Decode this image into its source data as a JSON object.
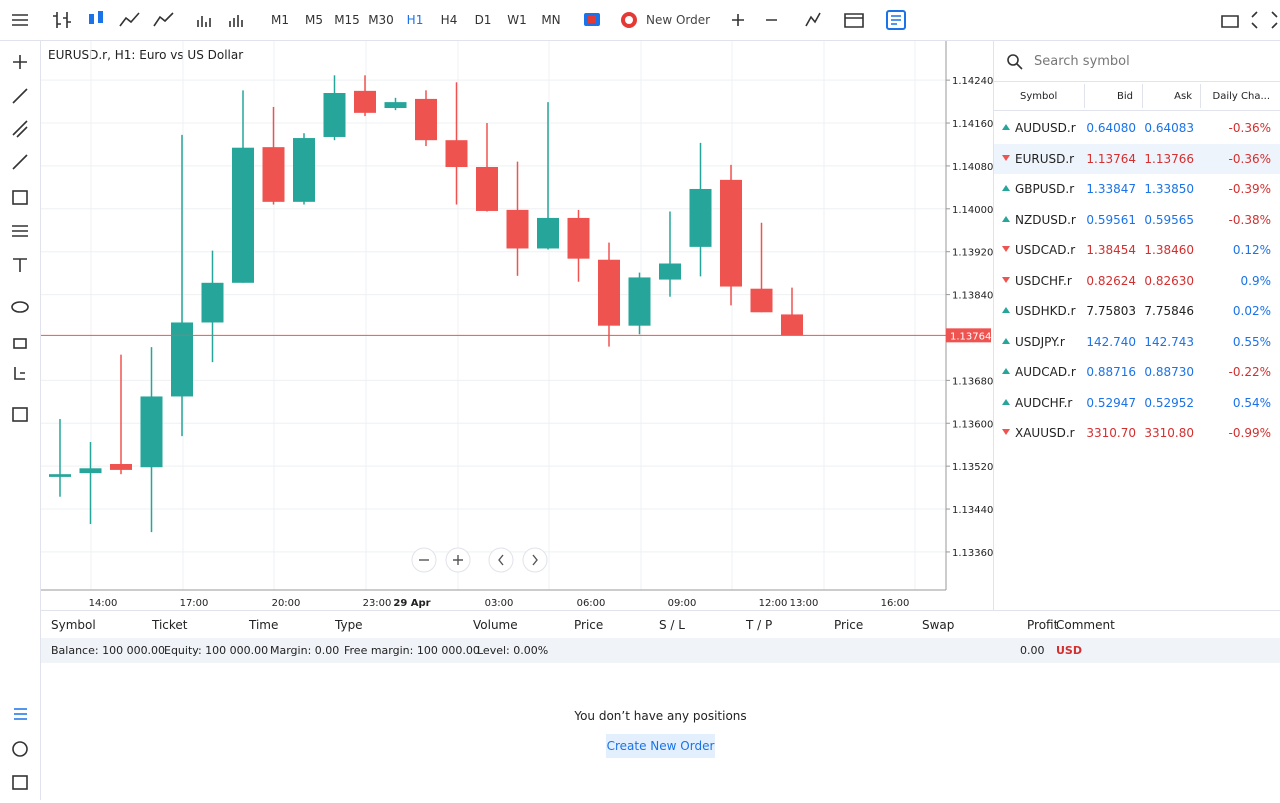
{
  "toolbar": {
    "timeframes": [
      "M1",
      "M5",
      "M15",
      "M30",
      "H1",
      "H4",
      "D1",
      "W1",
      "MN"
    ],
    "active_timeframe": "H1",
    "new_order": "New Order"
  },
  "chart": {
    "type": "candlestick",
    "title": "EURUSD.r, H1: Euro vs US Dollar",
    "up_color": "#26a69a",
    "down_color": "#ef5350",
    "ylim": [
      1.13289,
      1.14313
    ],
    "yticks": [
      {
        "value": 1.1424,
        "label": "1.14240"
      },
      {
        "value": 1.1416,
        "label": "1.14160"
      },
      {
        "value": 1.1408,
        "label": "1.14080"
      },
      {
        "value": 1.14,
        "label": "1.14000"
      },
      {
        "value": 1.1392,
        "label": "1.13920"
      },
      {
        "value": 1.1384,
        "label": "1.13840"
      },
      {
        "value": 1.1368,
        "label": "1.13680"
      },
      {
        "value": 1.136,
        "label": "1.13600"
      },
      {
        "value": 1.1352,
        "label": "1.13520"
      },
      {
        "value": 1.1344,
        "label": "1.13440"
      },
      {
        "value": 1.1336,
        "label": "1.13360"
      }
    ],
    "current_price": 1.13764,
    "xlabels": [
      "14:00",
      "17:00",
      "20:00",
      "23:00",
      "29 Apr",
      "03:00",
      "06:00",
      "09:00",
      "12:00",
      "13:00",
      "16:00"
    ],
    "candles": [
      {
        "open": 1.135,
        "high": 1.13608,
        "low": 1.13463,
        "close": 1.13505
      },
      {
        "open": 1.13507,
        "high": 1.13565,
        "low": 1.13412,
        "close": 1.13516
      },
      {
        "open": 1.13524,
        "high": 1.13728,
        "low": 1.13505,
        "close": 1.13513
      },
      {
        "open": 1.13518,
        "high": 1.13742,
        "low": 1.13397,
        "close": 1.1365
      },
      {
        "open": 1.1365,
        "high": 1.14138,
        "low": 1.13576,
        "close": 1.13788
      },
      {
        "open": 1.13788,
        "high": 1.13922,
        "low": 1.13714,
        "close": 1.13862
      },
      {
        "open": 1.13862,
        "high": 1.14221,
        "low": 1.13862,
        "close": 1.14114
      },
      {
        "open": 1.14115,
        "high": 1.1419,
        "low": 1.14008,
        "close": 1.14013
      },
      {
        "open": 1.14013,
        "high": 1.14141,
        "low": 1.14008,
        "close": 1.14132
      },
      {
        "open": 1.14134,
        "high": 1.14249,
        "low": 1.14128,
        "close": 1.14216
      },
      {
        "open": 1.1422,
        "high": 1.14249,
        "low": 1.14173,
        "close": 1.14179
      },
      {
        "open": 1.14188,
        "high": 1.14207,
        "low": 1.14184,
        "close": 1.14199
      },
      {
        "open": 1.14205,
        "high": 1.14221,
        "low": 1.14117,
        "close": 1.14128
      },
      {
        "open": 1.14128,
        "high": 1.14236,
        "low": 1.14008,
        "close": 1.14078
      },
      {
        "open": 1.14078,
        "high": 1.1416,
        "low": 1.13995,
        "close": 1.13996
      },
      {
        "open": 1.13998,
        "high": 1.14088,
        "low": 1.13875,
        "close": 1.13926
      },
      {
        "open": 1.13926,
        "high": 1.14199,
        "low": 1.13924,
        "close": 1.13983
      },
      {
        "open": 1.13983,
        "high": 1.13998,
        "low": 1.13864,
        "close": 1.13907
      },
      {
        "open": 1.13905,
        "high": 1.13937,
        "low": 1.13743,
        "close": 1.13782
      },
      {
        "open": 1.13782,
        "high": 1.13881,
        "low": 1.13766,
        "close": 1.13872
      },
      {
        "open": 1.13868,
        "high": 1.13995,
        "low": 1.13836,
        "close": 1.13898
      },
      {
        "open": 1.13929,
        "high": 1.14123,
        "low": 1.13874,
        "close": 1.14037
      },
      {
        "open": 1.14054,
        "high": 1.14082,
        "low": 1.1382,
        "close": 1.13855
      },
      {
        "open": 1.13851,
        "high": 1.13974,
        "low": 1.13807,
        "close": 1.13807
      },
      {
        "open": 1.13803,
        "high": 1.13853,
        "low": 1.13764,
        "close": 1.13764
      }
    ]
  },
  "watchlist": {
    "search_placeholder": "Search symbol",
    "headers": [
      "Symbol",
      "Bid",
      "Ask",
      "Daily Cha..."
    ],
    "rows": [
      {
        "symbol": "AUDUSD.r",
        "bid": "0.64080",
        "ask": "0.64083",
        "change": "-0.36%",
        "trend": "up",
        "price_color": "#1a73e8"
      },
      {
        "symbol": "EURUSD.r",
        "bid": "1.13764",
        "ask": "1.13766",
        "change": "-0.36%",
        "trend": "down",
        "price_color": "#d32f2f"
      },
      {
        "symbol": "GBPUSD.r",
        "bid": "1.33847",
        "ask": "1.33850",
        "change": "-0.39%",
        "trend": "up",
        "price_color": "#1a73e8"
      },
      {
        "symbol": "NZDUSD.r",
        "bid": "0.59561",
        "ask": "0.59565",
        "change": "-0.38%",
        "trend": "up",
        "price_color": "#1a73e8"
      },
      {
        "symbol": "USDCAD.r",
        "bid": "1.38454",
        "ask": "1.38460",
        "change": "0.12%",
        "trend": "down",
        "price_color": "#d32f2f"
      },
      {
        "symbol": "USDCHF.r",
        "bid": "0.82624",
        "ask": "0.82630",
        "change": "0.9%",
        "trend": "down",
        "price_color": "#d32f2f"
      },
      {
        "symbol": "USDHKD.r",
        "bid": "7.75803",
        "ask": "7.75846",
        "change": "0.02%",
        "trend": "up",
        "price_color": "#222222"
      },
      {
        "symbol": "USDJPY.r",
        "bid": "142.740",
        "ask": "142.743",
        "change": "0.55%",
        "trend": "up",
        "price_color": "#1a73e8"
      },
      {
        "symbol": "AUDCAD.r",
        "bid": "0.88716",
        "ask": "0.88730",
        "change": "-0.22%",
        "trend": "up",
        "price_color": "#1a73e8"
      },
      {
        "symbol": "AUDCHF.r",
        "bid": "0.52947",
        "ask": "0.52952",
        "change": "0.54%",
        "trend": "up",
        "price_color": "#1a73e8"
      },
      {
        "symbol": "XAUUSD.r",
        "bid": "3310.70",
        "ask": "3310.80",
        "change": "-0.99%",
        "trend": "down",
        "price_color": "#d32f2f"
      }
    ]
  },
  "positions": {
    "headers": [
      "Symbol",
      "Ticket",
      "Time",
      "Type",
      "Volume",
      "Price",
      "S / L",
      "T / P",
      "Price",
      "Swap",
      "Profit",
      "Comment"
    ],
    "summary": [
      "Balance: 100 000.00",
      "Equity: 100 000.00",
      "Margin: 0.00",
      "Free margin: 100 000.00",
      "Level: 0.00%"
    ],
    "profit": "0.00",
    "currency": "USD",
    "empty_message": "You don’t have any positions",
    "create_button": "Create New Order"
  }
}
